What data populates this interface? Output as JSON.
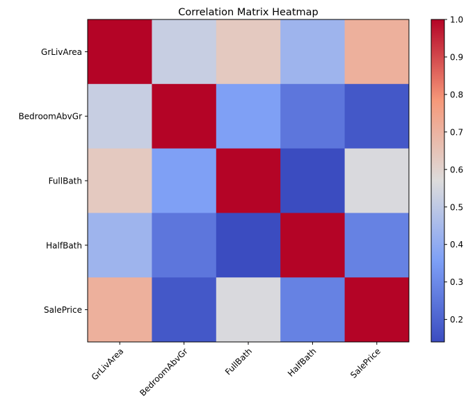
{
  "chart_data": {
    "type": "heatmap",
    "title": "Correlation Matrix Heatmap",
    "xlabel": "",
    "ylabel": "",
    "x_categories": [
      "GrLivArea",
      "BedroomAbvGr",
      "FullBath",
      "HalfBath",
      "SalePrice"
    ],
    "y_categories": [
      "GrLivArea",
      "BedroomAbvGr",
      "FullBath",
      "HalfBath",
      "SalePrice"
    ],
    "values": [
      [
        1.0,
        0.52,
        0.63,
        0.43,
        0.71
      ],
      [
        0.52,
        1.0,
        0.36,
        0.25,
        0.17
      ],
      [
        0.63,
        0.36,
        1.0,
        0.14,
        0.56
      ],
      [
        0.43,
        0.25,
        0.14,
        1.0,
        0.28
      ],
      [
        0.71,
        0.17,
        0.56,
        0.28,
        1.0
      ]
    ],
    "colormap": "coolwarm",
    "vmin": 0.14,
    "vmax": 1.0,
    "colorbar_ticks": [
      "0.2",
      "0.3",
      "0.4",
      "0.5",
      "0.6",
      "0.7",
      "0.8",
      "0.9",
      "1.0"
    ],
    "colorbar_tick_values": [
      0.2,
      0.3,
      0.4,
      0.5,
      0.6,
      0.7,
      0.8,
      0.9,
      1.0
    ],
    "x_tick_rotation": 45,
    "grid": false,
    "legend": "colorbar-right"
  }
}
